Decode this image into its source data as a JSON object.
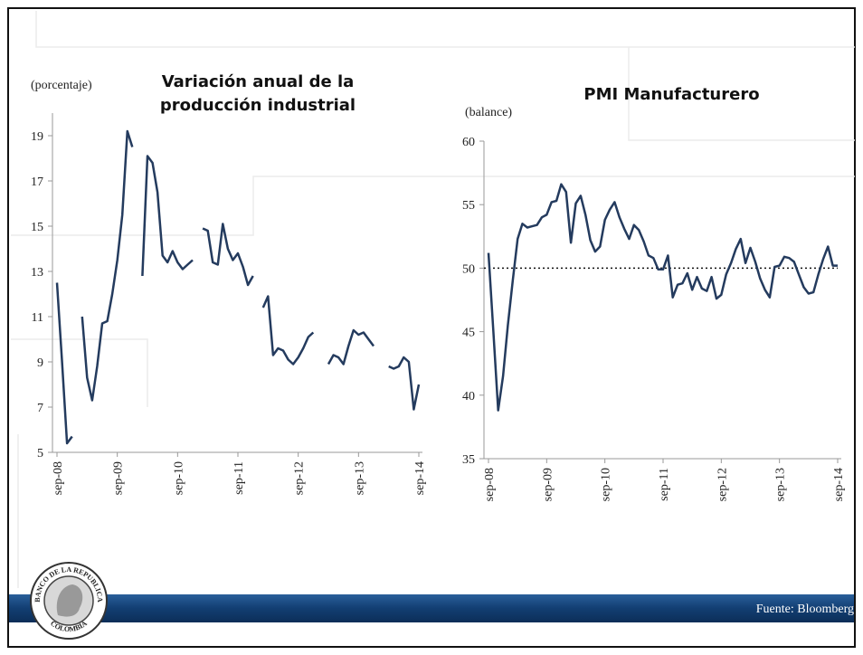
{
  "chart_data": [
    {
      "type": "line",
      "title": "Variación anual de la producción industrial",
      "y_label": "(porcentaje)",
      "categories": [
        "sep-08",
        null,
        null,
        null,
        null,
        null,
        null,
        null,
        null,
        null,
        null,
        null,
        "sep-09",
        null,
        null,
        null,
        null,
        null,
        null,
        null,
        null,
        null,
        null,
        null,
        "sep-10",
        null,
        null,
        null,
        null,
        null,
        null,
        null,
        null,
        null,
        null,
        null,
        "sep-11",
        null,
        null,
        null,
        null,
        null,
        null,
        null,
        null,
        null,
        null,
        null,
        "sep-12",
        null,
        null,
        null,
        null,
        null,
        null,
        null,
        null,
        null,
        null,
        null,
        "sep-13",
        null,
        null,
        null,
        null,
        null,
        null,
        null,
        null,
        null,
        null,
        null,
        "sep-14"
      ],
      "series": [
        {
          "color": "#243b5e",
          "values": [
            12.5,
            9,
            5.4,
            5.7,
            null,
            11.0,
            8.3,
            7.3,
            8.8,
            10.7,
            10.8,
            12,
            13.5,
            15.5,
            19.2,
            18.5,
            null,
            12.8,
            18.1,
            17.8,
            16.5,
            13.7,
            13.4,
            13.9,
            13.4,
            13.1,
            13.3,
            13.5,
            null,
            14.9,
            14.8,
            13.4,
            13.3,
            15.1,
            14.0,
            13.5,
            13.8,
            13.2,
            12.4,
            12.8,
            null,
            11.4,
            11.9,
            9.3,
            9.6,
            9.5,
            9.1,
            8.9,
            9.2,
            9.6,
            10.1,
            10.3,
            null,
            null,
            8.9,
            9.3,
            9.2,
            8.9,
            9.7,
            10.4,
            10.2,
            10.3,
            10.0,
            9.7,
            null,
            null,
            8.8,
            8.7,
            8.8,
            9.2,
            9.0,
            6.9,
            8.0
          ]
        }
      ],
      "ylim": [
        5,
        20
      ],
      "yticks": [
        5,
        7,
        9,
        11,
        13,
        15,
        17,
        19
      ]
    },
    {
      "type": "line",
      "title": "PMI Manufacturero",
      "y_label": "(balance)",
      "categories": [
        "sep-08",
        null,
        null,
        null,
        null,
        null,
        null,
        null,
        null,
        null,
        null,
        null,
        "sep-09",
        null,
        null,
        null,
        null,
        null,
        null,
        null,
        null,
        null,
        null,
        null,
        "sep-10",
        null,
        null,
        null,
        null,
        null,
        null,
        null,
        null,
        null,
        null,
        null,
        "sep-11",
        null,
        null,
        null,
        null,
        null,
        null,
        null,
        null,
        null,
        null,
        null,
        "sep-12",
        null,
        null,
        null,
        null,
        null,
        null,
        null,
        null,
        null,
        null,
        null,
        "sep-13",
        null,
        null,
        null,
        null,
        null,
        null,
        null,
        null,
        null,
        null,
        null,
        "sep-14"
      ],
      "series": [
        {
          "color": "#243b5e",
          "values": [
            51.2,
            45,
            38.8,
            41.5,
            45.5,
            49,
            52.3,
            53.5,
            53.2,
            53.3,
            53.4,
            54,
            54.2,
            55.2,
            55.3,
            56.6,
            56,
            52,
            55.1,
            55.7,
            54.2,
            52.2,
            51.3,
            51.7,
            53.8,
            54.6,
            55.2,
            54,
            53.1,
            52.3,
            53.4,
            53,
            52.1,
            51,
            50.8,
            49.9,
            49.9,
            51,
            47.7,
            48.7,
            48.8,
            49.6,
            48.3,
            49.3,
            48.4,
            48.2,
            49.3,
            47.6,
            47.9,
            49.5,
            50.4,
            51.5,
            52.3,
            50.4,
            51.6,
            50.5,
            49.2,
            48.3,
            47.7,
            50.1,
            50.2,
            50.9,
            50.8,
            50.5,
            49.5,
            48.5,
            48,
            48.1,
            49.5,
            50.7,
            51.7,
            50.2,
            50.2
          ]
        }
      ],
      "ylim": [
        35,
        60
      ],
      "yticks": [
        35,
        40,
        45,
        50,
        55,
        60
      ],
      "hline": 50
    }
  ],
  "footer": {
    "source": "Fuente: Bloomberg"
  },
  "logo": {
    "top": "BANCO DE LA REPUBLICA",
    "bottom": "COLOMBIA"
  }
}
